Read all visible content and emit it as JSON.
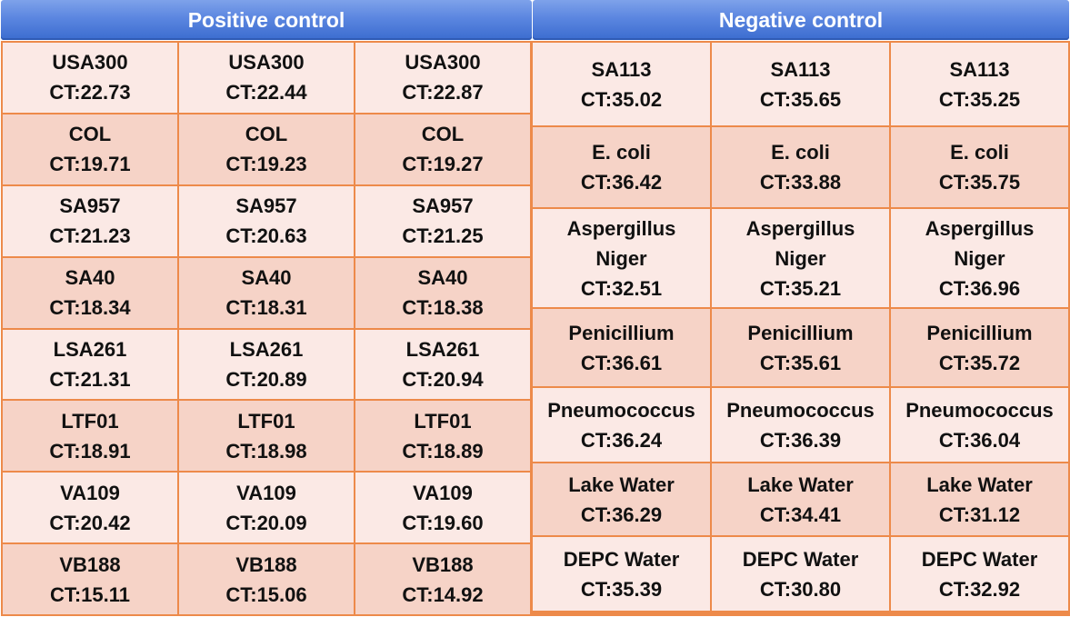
{
  "header": {
    "positive_title": "Positive control",
    "negative_title": "Negative control"
  },
  "colors": {
    "header_blue": "#5b86e0",
    "cell_light": "#fbe9e5",
    "cell_dark": "#f6d3c7",
    "border_orange": "#ed8a4a"
  },
  "positive_control": {
    "rows": [
      {
        "cells": [
          {
            "name": "USA300",
            "ct": "CT:22.73"
          },
          {
            "name": "USA300",
            "ct": "CT:22.44"
          },
          {
            "name": "USA300",
            "ct": "CT:22.87"
          }
        ]
      },
      {
        "cells": [
          {
            "name": "COL",
            "ct": "CT:19.71"
          },
          {
            "name": "COL",
            "ct": "CT:19.23"
          },
          {
            "name": "COL",
            "ct": "CT:19.27"
          }
        ]
      },
      {
        "cells": [
          {
            "name": "SA957",
            "ct": "CT:21.23"
          },
          {
            "name": "SA957",
            "ct": "CT:20.63"
          },
          {
            "name": "SA957",
            "ct": "CT:21.25"
          }
        ]
      },
      {
        "cells": [
          {
            "name": "SA40",
            "ct": "CT:18.34"
          },
          {
            "name": "SA40",
            "ct": "CT:18.31"
          },
          {
            "name": "SA40",
            "ct": "CT:18.38"
          }
        ]
      },
      {
        "cells": [
          {
            "name": "LSA261",
            "ct": "CT:21.31"
          },
          {
            "name": "LSA261",
            "ct": "CT:20.89"
          },
          {
            "name": "LSA261",
            "ct": "CT:20.94"
          }
        ]
      },
      {
        "cells": [
          {
            "name": "LTF01",
            "ct": "CT:18.91"
          },
          {
            "name": "LTF01",
            "ct": "CT:18.98"
          },
          {
            "name": "LTF01",
            "ct": "CT:18.89"
          }
        ]
      },
      {
        "cells": [
          {
            "name": "VA109",
            "ct": "CT:20.42"
          },
          {
            "name": "VA109",
            "ct": "CT:20.09"
          },
          {
            "name": "VA109",
            "ct": "CT:19.60"
          }
        ]
      },
      {
        "cells": [
          {
            "name": "VB188",
            "ct": "CT:15.11"
          },
          {
            "name": "VB188",
            "ct": "CT:15.06"
          },
          {
            "name": "VB188",
            "ct": "CT:14.92"
          }
        ]
      }
    ]
  },
  "negative_control": {
    "rows": [
      {
        "cells": [
          {
            "lines": [
              "SA113"
            ],
            "ct": "CT:35.02"
          },
          {
            "lines": [
              "SA113"
            ],
            "ct": "CT:35.65"
          },
          {
            "lines": [
              "SA113"
            ],
            "ct": "CT:35.25"
          }
        ]
      },
      {
        "cells": [
          {
            "lines": [
              "E. coli"
            ],
            "ct": "CT:36.42"
          },
          {
            "lines": [
              "E. coli"
            ],
            "ct": "CT:33.88"
          },
          {
            "lines": [
              "E. coli"
            ],
            "ct": "CT:35.75"
          }
        ]
      },
      {
        "cells": [
          {
            "lines": [
              "Aspergillus",
              "Niger"
            ],
            "ct": "CT:32.51"
          },
          {
            "lines": [
              "Aspergillus",
              "Niger"
            ],
            "ct": "CT:35.21"
          },
          {
            "lines": [
              "Aspergillus",
              "Niger"
            ],
            "ct": "CT:36.96"
          }
        ]
      },
      {
        "cells": [
          {
            "lines": [
              "Penicillium"
            ],
            "ct": "CT:36.61"
          },
          {
            "lines": [
              "Penicillium"
            ],
            "ct": "CT:35.61"
          },
          {
            "lines": [
              "Penicillium"
            ],
            "ct": "CT:35.72"
          }
        ]
      },
      {
        "cells": [
          {
            "lines": [
              "Pneumococcus"
            ],
            "ct": "CT:36.24"
          },
          {
            "lines": [
              "Pneumococcus"
            ],
            "ct": "CT:36.39"
          },
          {
            "lines": [
              "Pneumococcus"
            ],
            "ct": "CT:36.04"
          }
        ]
      },
      {
        "cells": [
          {
            "lines": [
              "Lake Water"
            ],
            "ct": "CT:36.29"
          },
          {
            "lines": [
              "Lake Water"
            ],
            "ct": "CT:34.41"
          },
          {
            "lines": [
              "Lake Water"
            ],
            "ct": "CT:31.12"
          }
        ]
      },
      {
        "cells": [
          {
            "lines": [
              "DEPC Water"
            ],
            "ct": "CT:35.39"
          },
          {
            "lines": [
              "DEPC Water"
            ],
            "ct": "CT:30.80"
          },
          {
            "lines": [
              "DEPC Water"
            ],
            "ct": "CT:32.92"
          }
        ]
      }
    ]
  }
}
